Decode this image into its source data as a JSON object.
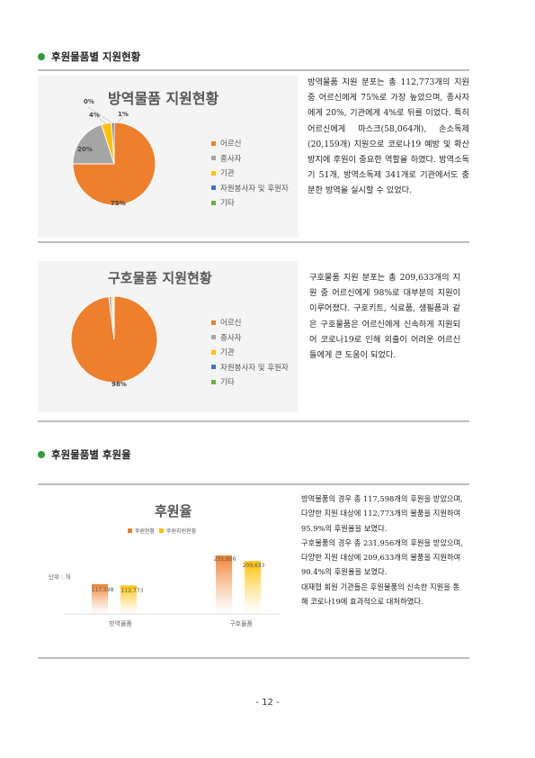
{
  "section1": {
    "title": "후원물품별 지원현황"
  },
  "section2": {
    "title": "후원물품별 후원율"
  },
  "chart1": {
    "title": "방역물품 지원현황",
    "labels": [
      "0%",
      "4%",
      "1%",
      "20%",
      "75%"
    ]
  },
  "chart2": {
    "title": "구호물품 지원현황",
    "labels": [
      "98%"
    ]
  },
  "legend": [
    {
      "label": "어르신",
      "color": "#ee7f2d"
    },
    {
      "label": "종사자",
      "color": "#a5a5a5"
    },
    {
      "label": "기관",
      "color": "#ffc000"
    },
    {
      "label": "자원봉사자 및 후원자",
      "color": "#4472c4"
    },
    {
      "label": "기타",
      "color": "#70ad47"
    }
  ],
  "chart3": {
    "title": "후원율",
    "legend": [
      "후원현황",
      "후원지원현황"
    ],
    "unit": "단위 : 개",
    "value_labels": [
      "117,598",
      "112,773",
      "231,956",
      "209,633"
    ]
  },
  "chart_data": [
    {
      "type": "pie",
      "title": "방역물품 지원현황",
      "categories": [
        "어르신",
        "종사자",
        "기관",
        "자원봉사자 및 후원자",
        "기타"
      ],
      "values": [
        75,
        20,
        4,
        1,
        0
      ]
    },
    {
      "type": "pie",
      "title": "구호물품 지원현황",
      "categories": [
        "어르신",
        "종사자",
        "기관",
        "자원봉사자 및 후원자",
        "기타"
      ],
      "values": [
        98,
        1,
        0.6,
        0.2,
        0.2
      ]
    },
    {
      "type": "bar",
      "title": "후원율",
      "categories": [
        "방역물품",
        "구호물품"
      ],
      "series": [
        {
          "name": "후원현황",
          "values": [
            117598,
            231956
          ]
        },
        {
          "name": "후원지원현황",
          "values": [
            112773,
            209633
          ]
        }
      ],
      "ylim": [
        0,
        250000
      ]
    }
  ],
  "para1": "방역물품 지원 분포는 총 112,773개의 지원 중 어르신에게 75%로 가장 높았으며, 종사자에게 20%, 기관에게 4%로 뒤를 이었다. 특히 어르신에게 마스크(58,064개), 손소독제(20,159개) 지원으로 코로나19 예방 및 확산방지에 후원이 중요한 역할을 하였다. 방역소독기 51개, 방역소독제 341개로 기관에서도 충분한 방역을 실시할 수 있었다.",
  "para2": "구호물품 지원 분포는 총 209,633개의 지원 중 어르신에게 98%로 대부분의 지원이 이루어졌다. 구호키트, 식료품, 생필품과 같은 구호물품은 어르신에게 신속하게 지원되어 코로나19로 인해 외출이 어려운 어르신들에게 큰 도움이 되었다.",
  "para3": [
    "방역물품의 경우 총 117,598개의 후원을 받았으며, 다양한 지원 대상에 112,773개의 물품을 지원하여 95.9%의 후원율을 보였다.",
    "구호물품의 경우 총 231,956개의 후원을 받았으며, 다양한 지원 대상에 209,633개의 물품을 지원하여 90.4%의 후원율을 보였다.",
    "대재협 회원 기관들은 후원물품의 신속한 지원을 통해 코로나19에 효과적으로 대처하였다."
  ],
  "page_number": "- 12 -"
}
